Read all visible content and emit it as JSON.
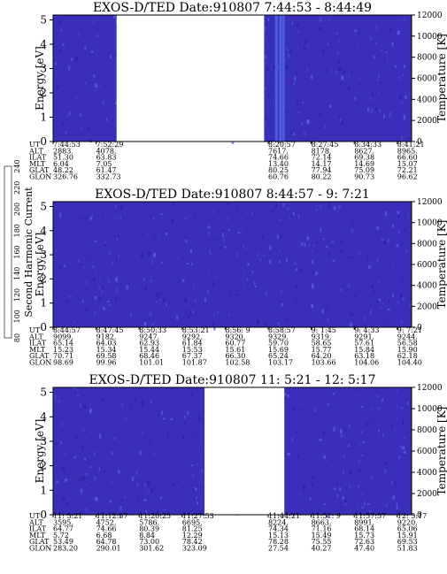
{
  "colorbar": {
    "label": "Second Harmonic Current",
    "ticks": [
      "80",
      "100",
      "120",
      "140",
      "160",
      "180",
      "200",
      "220",
      "240"
    ],
    "colors": [
      "#000000",
      "#2a0a55",
      "#4a1fa8",
      "#3030d8",
      "#1f6ee8",
      "#19b6dd",
      "#2fd98a",
      "#d6e63a",
      "#ffd21c",
      "#ff8a14",
      "#e82a14"
    ]
  },
  "panel_colors": {
    "background": "#3a2fb8",
    "speckle": [
      "#4a48d8",
      "#2c1f9a",
      "#5a66e6"
    ],
    "gap": "#ffffff"
  },
  "chart_data": [
    {
      "type": "heatmap",
      "title": "EXOS-D/TED   Date:910807  7:44:53 - 8:44:49",
      "ylabel": "Energy [eV]",
      "y2label": "Temperature [K]",
      "yticks": [
        "0",
        "1",
        "2",
        "3",
        "4",
        "5"
      ],
      "y2ticks": [
        "0",
        "2000",
        "4000",
        "6000",
        "8000",
        "10000",
        "12000"
      ],
      "ylim": [
        0,
        5.2
      ],
      "y2lim": [
        0,
        12000
      ],
      "time_range": [
        "7:44:53",
        "8:44:49"
      ],
      "data_gaps": [
        [
          "7:55:30",
          "8:20:10"
        ]
      ],
      "intense_stripes": [
        "8:22:00",
        "8:22:40",
        "8:23:10"
      ],
      "orbit_labels": [
        "UT",
        "ALT",
        "ILAT",
        "MLT",
        "GLAT",
        "GLON"
      ],
      "orbit_columns": [
        {
          "pos": 0.0,
          "values": [
            "7:44:53",
            "2883.",
            "51.30",
            "6.04",
            "48.22",
            "326.76"
          ]
        },
        {
          "pos": 0.12,
          "values": [
            "7:52:29",
            "4078.",
            "63.83",
            "7.05",
            "61.47",
            "332.73"
          ]
        },
        {
          "pos": 0.6,
          "values": [
            "8:20:57",
            "7617.",
            "74.66",
            "13.40",
            "80.25",
            "60.76"
          ]
        },
        {
          "pos": 0.72,
          "values": [
            "8:27:45",
            "8178.",
            "72.14",
            "14.17",
            "77.94",
            "80.22"
          ]
        },
        {
          "pos": 0.84,
          "values": [
            "8:34:33",
            "8627.",
            "69.38",
            "14.69",
            "75.09",
            "90.73"
          ]
        },
        {
          "pos": 0.96,
          "values": [
            "8:41:21",
            "8965.",
            "66.60",
            "15.07",
            "72.21",
            "96.62"
          ]
        }
      ]
    },
    {
      "type": "heatmap",
      "title": "EXOS-D/TED   Date:910807  8:44:57 - 9: 7:21",
      "ylabel": "Energy [eV]",
      "y2label": "Temperature [K]",
      "yticks": [
        "0",
        "1",
        "2",
        "3",
        "4",
        "5"
      ],
      "y2ticks": [
        "0",
        "2000",
        "4000",
        "6000",
        "8000",
        "10000",
        "12000"
      ],
      "ylim": [
        0,
        5.2
      ],
      "y2lim": [
        0,
        12000
      ],
      "time_range": [
        "8:44:57",
        "9: 7:21"
      ],
      "data_gaps": [],
      "intense_stripes": [],
      "orbit_labels": [
        "UT",
        "ALT",
        "ILAT",
        "MLT",
        "GLAT",
        "GLON"
      ],
      "orbit_columns": [
        {
          "pos": 0.0,
          "values": [
            "8:44:57",
            "9099.",
            "65.14",
            "15.23",
            "70.71",
            "98.69"
          ]
        },
        {
          "pos": 0.12,
          "values": [
            "8:47:45",
            "9182.",
            "64.03",
            "15.34",
            "69.58",
            "99.96"
          ]
        },
        {
          "pos": 0.24,
          "values": [
            "8:50:33",
            "9247.",
            "62.93",
            "15.44",
            "68.46",
            "101.01"
          ]
        },
        {
          "pos": 0.36,
          "values": [
            "8:53:21",
            "9292.",
            "61.84",
            "15.53",
            "67.37",
            "101.87"
          ]
        },
        {
          "pos": 0.48,
          "values": [
            "8:56: 9",
            "9320.",
            "60.77",
            "15.61",
            "66.30",
            "102.58"
          ]
        },
        {
          "pos": 0.6,
          "values": [
            "8:58:57",
            "9329.",
            "59.70",
            "15.69",
            "65.24",
            "103.17"
          ]
        },
        {
          "pos": 0.72,
          "values": [
            "9: 1:45",
            "9319.",
            "58.65",
            "15.77",
            "64.20",
            "103.66"
          ]
        },
        {
          "pos": 0.84,
          "values": [
            "9: 4:33",
            "9291.",
            "57.61",
            "15.84",
            "63.18",
            "104.06"
          ]
        },
        {
          "pos": 0.96,
          "values": [
            "9: 7:21",
            "9244.",
            "56.58",
            "15.90",
            "62.18",
            "104.40"
          ]
        }
      ]
    },
    {
      "type": "heatmap",
      "title": "EXOS-D/TED   Date:910807  11: 5:21 - 12: 5:17",
      "ylabel": "Energy [eV]",
      "y2label": "Temperature [K]",
      "yticks": [
        "0",
        "1",
        "2",
        "3",
        "4",
        "5"
      ],
      "y2ticks": [
        "0",
        "2000",
        "4000",
        "6000",
        "8000",
        "10000",
        "12000"
      ],
      "ylim": [
        0,
        5.2
      ],
      "y2lim": [
        0,
        12000
      ],
      "time_range": [
        "11: 5:21",
        "12: 5:17"
      ],
      "data_gaps": [
        [
          "11:30:40",
          "11:44:00"
        ]
      ],
      "intense_stripes": [],
      "orbit_labels": [
        "UT",
        "ALT",
        "ILAT",
        "MLT",
        "GLAT",
        "GLON"
      ],
      "orbit_columns": [
        {
          "pos": 0.0,
          "values": [
            "11: 5:21",
            "3595.",
            "64.77",
            "5.72",
            "53.49",
            "283.20"
          ]
        },
        {
          "pos": 0.12,
          "values": [
            "11:12:57",
            "4752.",
            "74.66",
            "6.68",
            "64.78",
            "290.01"
          ]
        },
        {
          "pos": 0.24,
          "values": [
            "11:20:25",
            "5786.",
            "80.39",
            "8.84",
            "73.00",
            "301.62"
          ]
        },
        {
          "pos": 0.36,
          "values": [
            "11:27:53",
            "6695.",
            "81.25",
            "12.29",
            "78.42",
            "323.09"
          ]
        },
        {
          "pos": 0.6,
          "values": [
            "11:44:21",
            "8224.",
            "74.34",
            "15.13",
            "78.28",
            "27.54"
          ]
        },
        {
          "pos": 0.72,
          "values": [
            "11:51: 9",
            "8663.",
            "71.16",
            "15.49",
            "75.55",
            "40.27"
          ]
        },
        {
          "pos": 0.84,
          "values": [
            "11:57:57",
            "8991.",
            "68.14",
            "15.73",
            "72.63",
            "47.40"
          ]
        },
        {
          "pos": 0.96,
          "values": [
            "12: 5:17",
            "9220.",
            "65.06",
            "15.91",
            "69.53",
            "51.83"
          ]
        }
      ]
    }
  ]
}
